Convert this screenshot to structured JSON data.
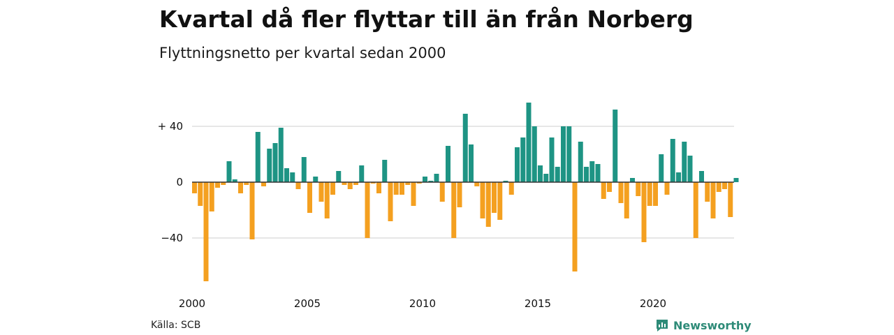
{
  "chart_data": {
    "type": "bar",
    "title": "Kvartal då fler flyttar till än från Norberg",
    "subtitle": "Flyttningsnetto per kvartal sedan 2000",
    "source": "Källa: SCB",
    "logo": "Newsworthy",
    "ylim": [
      -72,
      60
    ],
    "y_ticks": [
      {
        "value": 40,
        "label": "+ 40"
      },
      {
        "value": 0,
        "label": "0"
      },
      {
        "value": -40,
        "label": "−40"
      }
    ],
    "x_ticks": [
      {
        "year": 2000,
        "label": "2000"
      },
      {
        "year": 2005,
        "label": "2005"
      },
      {
        "year": 2010,
        "label": "2010"
      },
      {
        "year": 2015,
        "label": "2015"
      },
      {
        "year": 2020,
        "label": "2020"
      }
    ],
    "start_year": 2000,
    "grid": true,
    "colors": {
      "positive": "#1e9484",
      "negative": "#f4a020",
      "grid": "#dddddd",
      "zero": "#333333"
    },
    "values": [
      -8,
      -17,
      -71,
      -21,
      -4,
      -2,
      15,
      2,
      -8,
      -2,
      -41,
      36,
      -3,
      24,
      28,
      39,
      10,
      7,
      -5,
      18,
      -22,
      4,
      -14,
      -26,
      -9,
      8,
      -2,
      -5,
      -2,
      12,
      -40,
      -1,
      -8,
      16,
      -28,
      -9,
      -9,
      -2,
      -17,
      -1,
      4,
      1,
      6,
      -14,
      26,
      -40,
      -18,
      49,
      27,
      -3,
      -26,
      -32,
      -22,
      -27,
      1,
      -9,
      25,
      32,
      57,
      40,
      12,
      6,
      32,
      11,
      40,
      40,
      -64,
      29,
      11,
      15,
      13,
      -12,
      -7,
      52,
      -15,
      -26,
      3,
      -10,
      -43,
      -17,
      -17,
      20,
      -9,
      31,
      7,
      29,
      19,
      -40,
      8,
      -14,
      -26,
      -7,
      -5,
      -25,
      3
    ]
  }
}
